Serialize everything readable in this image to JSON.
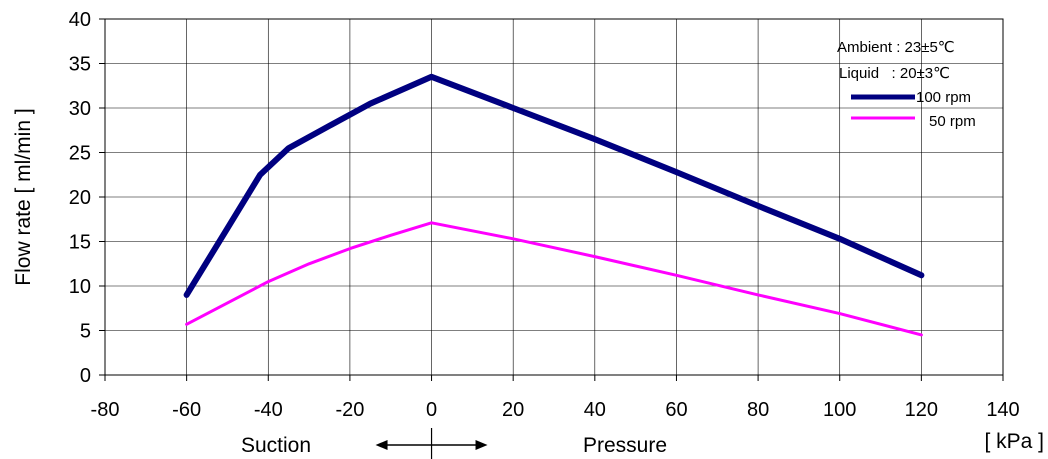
{
  "chart_data": {
    "type": "line",
    "ylabel": "Flow rate [ ml/min ]",
    "xlabel_left": "Suction",
    "xlabel_right": "Pressure",
    "xunit": "[ kPa ]",
    "xlim": [
      -80,
      140
    ],
    "ylim": [
      0,
      40
    ],
    "xticks": [
      -80,
      -60,
      -40,
      -20,
      0,
      20,
      40,
      60,
      80,
      100,
      120,
      140
    ],
    "yticks": [
      0,
      5,
      10,
      15,
      20,
      25,
      30,
      35,
      40
    ],
    "grid": true,
    "legend": {
      "position": "top-right",
      "ambient_line": "Ambient : 23±5℃",
      "liquid_line": "Liquid   : 20±3℃"
    },
    "series": [
      {
        "name": "100 rpm",
        "color": "#000080",
        "x": [
          -60,
          -50,
          -42,
          -35,
          -25,
          -15,
          0,
          20,
          40,
          60,
          80,
          100,
          120
        ],
        "values": [
          9.0,
          16.5,
          22.5,
          25.5,
          28.0,
          30.5,
          33.5,
          30.0,
          26.5,
          22.8,
          19.0,
          15.3,
          11.2
        ]
      },
      {
        "name": "50 rpm",
        "color": "#ff00ff",
        "x": [
          -60,
          -40,
          -30,
          -20,
          -10,
          0,
          20,
          40,
          60,
          80,
          100,
          120
        ],
        "values": [
          5.7,
          10.5,
          12.5,
          14.2,
          15.7,
          17.1,
          15.3,
          13.3,
          11.2,
          9.0,
          6.9,
          4.5
        ]
      }
    ]
  }
}
